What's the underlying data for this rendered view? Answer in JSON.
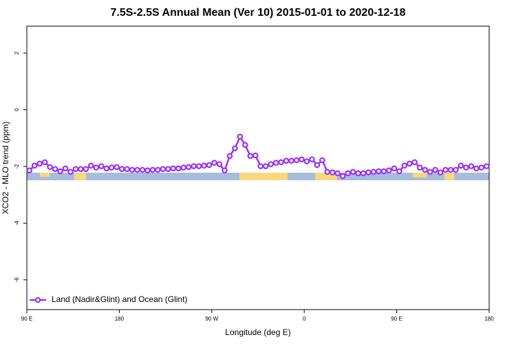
{
  "chart_data": {
    "type": "line",
    "title": "7.5S-2.5S Annual Mean (Ver 10)   2015-01-01 to 2020-12-18",
    "x_label": "Longitude (deg E)",
    "y_label": "XCO2 - MLO trend (ppm)",
    "x": [
      92.5,
      97.5,
      102.5,
      107.5,
      112.5,
      117.5,
      122.5,
      127.5,
      132.5,
      137.5,
      142.5,
      147.5,
      152.5,
      157.5,
      162.5,
      167.5,
      172.5,
      177.5,
      182.5,
      187.5,
      192.5,
      197.5,
      202.5,
      207.5,
      212.5,
      217.5,
      222.5,
      227.5,
      232.5,
      237.5,
      242.5,
      247.5,
      252.5,
      257.5,
      262.5,
      267.5,
      272.5,
      277.5,
      282.5,
      287.5,
      292.5,
      297.5,
      302.5,
      307.5,
      312.5,
      317.5,
      322.5,
      327.5,
      332.5,
      337.5,
      342.5,
      347.5,
      352.5,
      357.5,
      362.5,
      367.5,
      372.5,
      377.5,
      382.5,
      387.5,
      392.5,
      397.5,
      402.5,
      407.5,
      412.5,
      417.5,
      422.5,
      427.5,
      432.5,
      437.5,
      442.5,
      447.5,
      452.5,
      457.5,
      462.5,
      467.5,
      472.5,
      477.5,
      482.5,
      487.5,
      492.5,
      497.5,
      502.5,
      507.5,
      512.5,
      517.5,
      522.5,
      527.5,
      532.5,
      537.5
    ],
    "series": [
      {
        "name": "Land (Nadir&Glint) and Ocean (Glint)",
        "color": "#9b30ff",
        "values": [
          -2.14,
          -1.97,
          -1.9,
          -1.85,
          -2.02,
          -2.09,
          -2.17,
          -2.07,
          -2.19,
          -2.09,
          -2.09,
          -2.09,
          -1.97,
          -2.04,
          -1.99,
          -2.07,
          -2.04,
          -2.02,
          -2.09,
          -2.09,
          -2.12,
          -2.12,
          -2.12,
          -2.14,
          -2.12,
          -2.12,
          -2.09,
          -2.09,
          -2.07,
          -2.07,
          -2.04,
          -2.02,
          -1.99,
          -1.99,
          -1.97,
          -1.95,
          -1.87,
          -1.92,
          -2.14,
          -1.63,
          -1.36,
          -0.95,
          -1.24,
          -1.63,
          -1.61,
          -1.99,
          -1.99,
          -1.92,
          -1.87,
          -1.85,
          -1.8,
          -1.8,
          -1.78,
          -1.75,
          -1.82,
          -1.75,
          -1.95,
          -1.78,
          -2.19,
          -2.21,
          -2.24,
          -2.34,
          -2.24,
          -2.19,
          -2.24,
          -2.24,
          -2.21,
          -2.19,
          -2.17,
          -2.17,
          -2.14,
          -2.07,
          -2.17,
          -1.97,
          -1.9,
          -1.85,
          -2.04,
          -2.12,
          -2.19,
          -2.12,
          -2.21,
          -2.12,
          -2.12,
          -2.12,
          -1.97,
          -2.04,
          -1.99,
          -2.07,
          -2.04,
          -1.99
        ]
      }
    ],
    "xlim": [
      90,
      540
    ],
    "xticks": [
      {
        "value": 90,
        "label": "90 E"
      },
      180,
      {
        "value": 270,
        "label": "90 W"
      },
      {
        "value": 360,
        "label": "0"
      },
      {
        "value": 450,
        "label": "90 E"
      },
      {
        "value": 540,
        "label": "180"
      }
    ],
    "ylim": [
      -7.05,
      2.95
    ],
    "yticks": [
      -6,
      -4,
      -2,
      0,
      2
    ],
    "legend": "bottomleft"
  }
}
